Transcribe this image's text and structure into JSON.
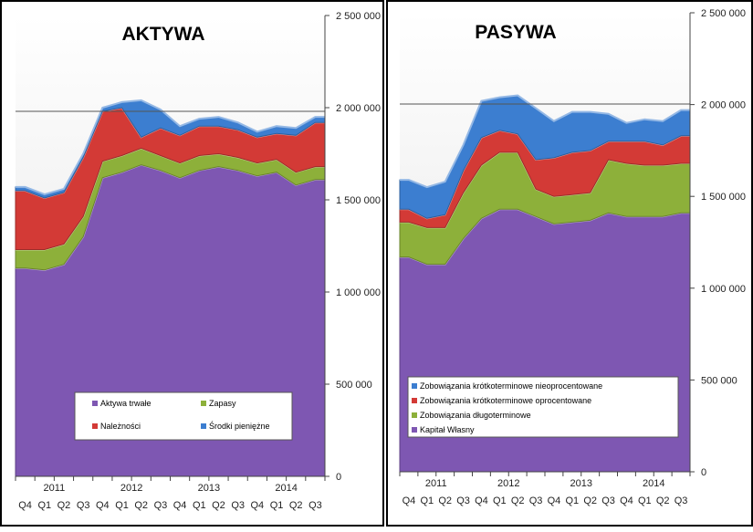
{
  "chart_data": [
    {
      "type": "area",
      "stacked": true,
      "title": "AKTYWA",
      "categories": [
        "Q4",
        "Q1",
        "Q2",
        "Q3",
        "Q4",
        "Q1",
        "Q2",
        "Q3",
        "Q4",
        "Q1",
        "Q2",
        "Q3",
        "Q4",
        "Q1",
        "Q2",
        "Q3"
      ],
      "years": [
        {
          "label": "2011",
          "from": 0,
          "to": 3
        },
        {
          "label": "2012",
          "from": 4,
          "to": 7
        },
        {
          "label": "2013",
          "from": 8,
          "to": 11
        },
        {
          "label": "2014",
          "from": 12,
          "to": 15
        }
      ],
      "ylim": [
        0,
        2500000
      ],
      "y_ticks": [
        "0",
        "500 000",
        "1 000 000",
        "1 500 000",
        "2 000 000",
        "2 500 000"
      ],
      "reference_line": 2000000,
      "series": [
        {
          "name": "Aktywa trwałe",
          "color": "#7E57B2",
          "values": [
            1130000,
            1120000,
            1150000,
            1300000,
            1620000,
            1650000,
            1690000,
            1660000,
            1620000,
            1660000,
            1680000,
            1660000,
            1630000,
            1650000,
            1580000,
            1610000
          ]
        },
        {
          "name": "Zapasy",
          "color": "#8DB03A",
          "values": [
            100000,
            110000,
            110000,
            110000,
            90000,
            90000,
            90000,
            80000,
            80000,
            80000,
            70000,
            70000,
            70000,
            70000,
            70000,
            70000
          ]
        },
        {
          "name": "Należności",
          "color": "#D33A36",
          "values": [
            320000,
            280000,
            280000,
            320000,
            270000,
            260000,
            60000,
            150000,
            150000,
            160000,
            150000,
            150000,
            140000,
            140000,
            200000,
            240000
          ]
        },
        {
          "name": "Środki pieniężne",
          "color": "#3C7ED0",
          "values": [
            20000,
            20000,
            20000,
            20000,
            20000,
            30000,
            200000,
            100000,
            50000,
            40000,
            50000,
            40000,
            30000,
            40000,
            40000,
            30000
          ]
        }
      ],
      "legend": {
        "position": "bottom-center"
      }
    },
    {
      "type": "area",
      "stacked": true,
      "title": "PASYWA",
      "categories": [
        "Q4",
        "Q1",
        "Q2",
        "Q3",
        "Q4",
        "Q1",
        "Q2",
        "Q3",
        "Q4",
        "Q1",
        "Q2",
        "Q3",
        "Q4",
        "Q1",
        "Q2",
        "Q3"
      ],
      "years": [
        {
          "label": "2011",
          "from": 0,
          "to": 3
        },
        {
          "label": "2012",
          "from": 4,
          "to": 7
        },
        {
          "label": "2013",
          "from": 8,
          "to": 11
        },
        {
          "label": "2014",
          "from": 12,
          "to": 15
        }
      ],
      "ylim": [
        0,
        2500000
      ],
      "y_ticks": [
        "0",
        "500 000",
        "1 000 000",
        "1 500 000",
        "2 000 000",
        "2 500 000"
      ],
      "reference_line": 2000000,
      "series": [
        {
          "name": "Kapitał Własny",
          "color": "#7E57B2",
          "values": [
            1170000,
            1130000,
            1130000,
            1270000,
            1380000,
            1430000,
            1430000,
            1390000,
            1350000,
            1360000,
            1370000,
            1410000,
            1390000,
            1390000,
            1390000,
            1410000
          ]
        },
        {
          "name": "Zobowiązania długoterminowe",
          "color": "#8DB03A",
          "values": [
            190000,
            200000,
            200000,
            250000,
            290000,
            310000,
            310000,
            150000,
            150000,
            150000,
            150000,
            290000,
            290000,
            280000,
            280000,
            270000
          ]
        },
        {
          "name": "Zobowiązania krótkoterminowe oprocentowane",
          "color": "#D33A36",
          "values": [
            70000,
            50000,
            70000,
            120000,
            150000,
            120000,
            100000,
            160000,
            210000,
            230000,
            230000,
            100000,
            120000,
            130000,
            110000,
            150000
          ]
        },
        {
          "name": "Zobowiązania krótkoterminowe nieoprocentowane",
          "color": "#3C7ED0",
          "values": [
            160000,
            170000,
            180000,
            140000,
            200000,
            180000,
            210000,
            280000,
            200000,
            220000,
            210000,
            150000,
            100000,
            120000,
            130000,
            140000
          ]
        }
      ],
      "legend": {
        "position": "bottom-left"
      }
    }
  ]
}
